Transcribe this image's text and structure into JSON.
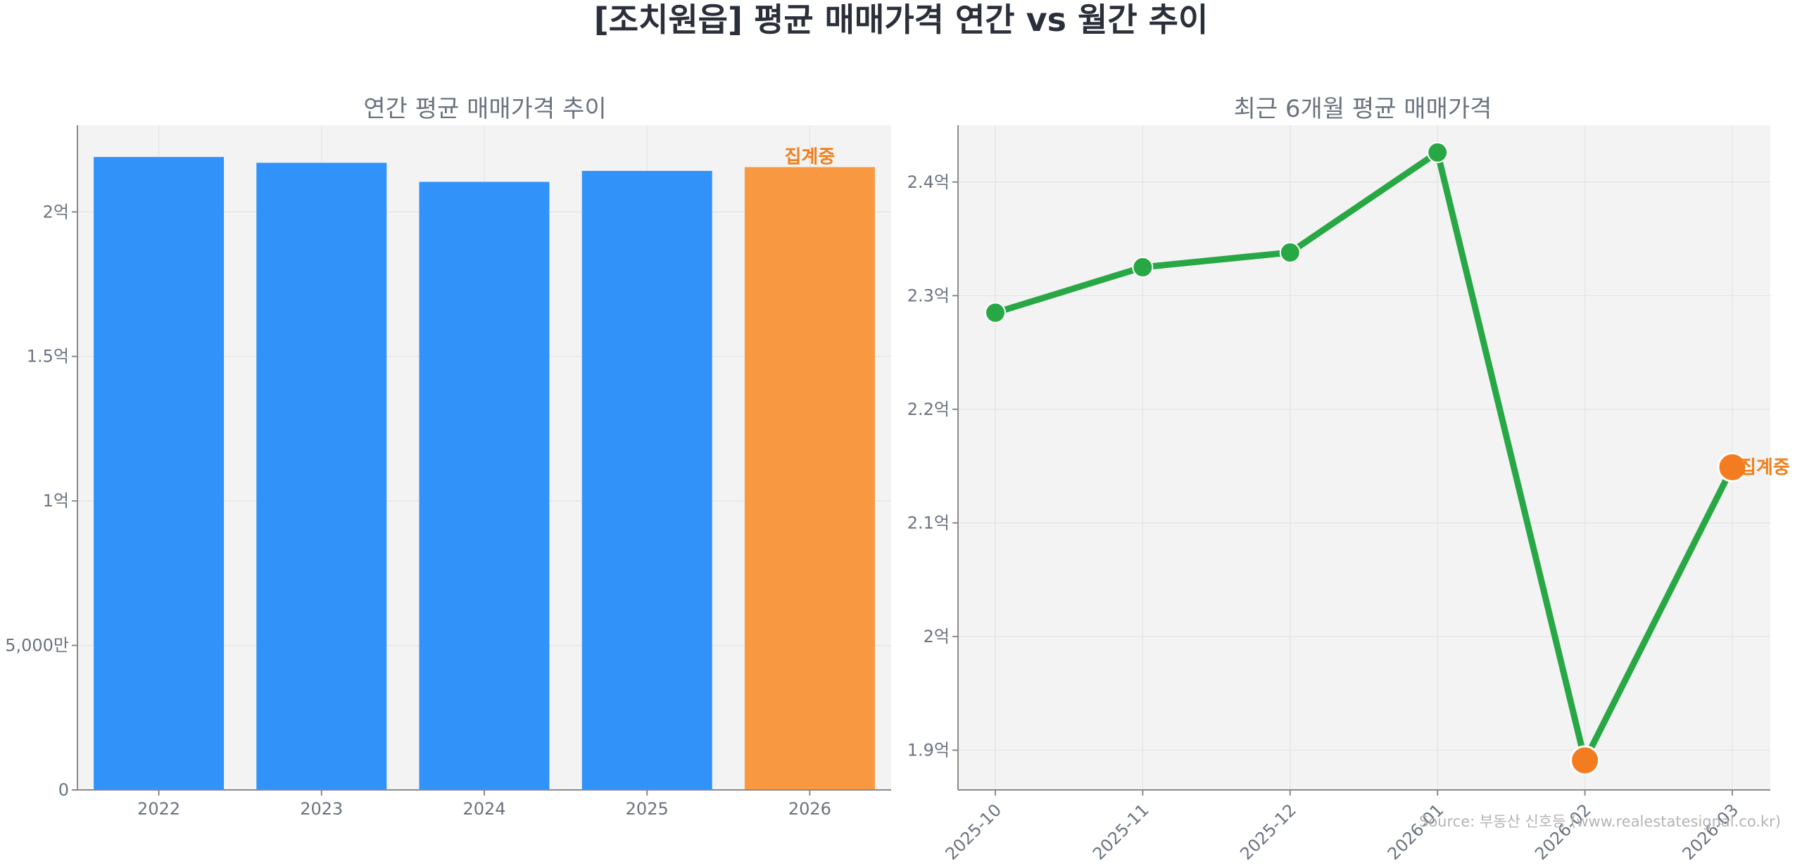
{
  "page_title": "[조치원읍] 평균 매매가격 연간 vs 월간 추이",
  "source": "Source: 부동산 신호등 (www.realestatesignal.co.kr)",
  "colors": {
    "panel_bg": "#f3f3f3",
    "bar": "#3192f9",
    "bar_highlight": "#f89840",
    "line": "#28a745",
    "marker_highlight": "#f47c20",
    "highlight_text": "#f07f1c"
  },
  "chart_data": [
    {
      "type": "bar",
      "title": "연간 평균 매매가격 추이",
      "categories": [
        "2022",
        "2023",
        "2024",
        "2025",
        "2026"
      ],
      "values": [
        21900,
        21700,
        21040,
        21420,
        21550
      ],
      "unit": "만원",
      "ylim": [
        0,
        23000
      ],
      "yticks": [
        {
          "value": 0,
          "label": "0"
        },
        {
          "value": 5000,
          "label": "5,000만"
        },
        {
          "value": 10000,
          "label": "1억"
        },
        {
          "value": 15000,
          "label": "1.5억"
        },
        {
          "value": 20000,
          "label": "2억"
        }
      ],
      "highlight_index": 4,
      "highlight_label": "집계중",
      "grid": true
    },
    {
      "type": "line",
      "title": "최근 6개월 평균 매매가격",
      "categories": [
        "2025-10",
        "2025-11",
        "2025-12",
        "2026-01",
        "2026-02",
        "2026-03"
      ],
      "values": [
        22850,
        23250,
        23380,
        24260,
        18910,
        21490
      ],
      "unit": "만원",
      "ylim": [
        18650,
        24500
      ],
      "yticks": [
        {
          "value": 19000,
          "label": "1.9억"
        },
        {
          "value": 20000,
          "label": "2억"
        },
        {
          "value": 21000,
          "label": "2.1억"
        },
        {
          "value": 22000,
          "label": "2.2억"
        },
        {
          "value": 23000,
          "label": "2.3억"
        },
        {
          "value": 24000,
          "label": "2.4억"
        }
      ],
      "highlight_indices": [
        4,
        5
      ],
      "highlight_label_index": 5,
      "highlight_label": "집계중",
      "grid": true
    }
  ]
}
